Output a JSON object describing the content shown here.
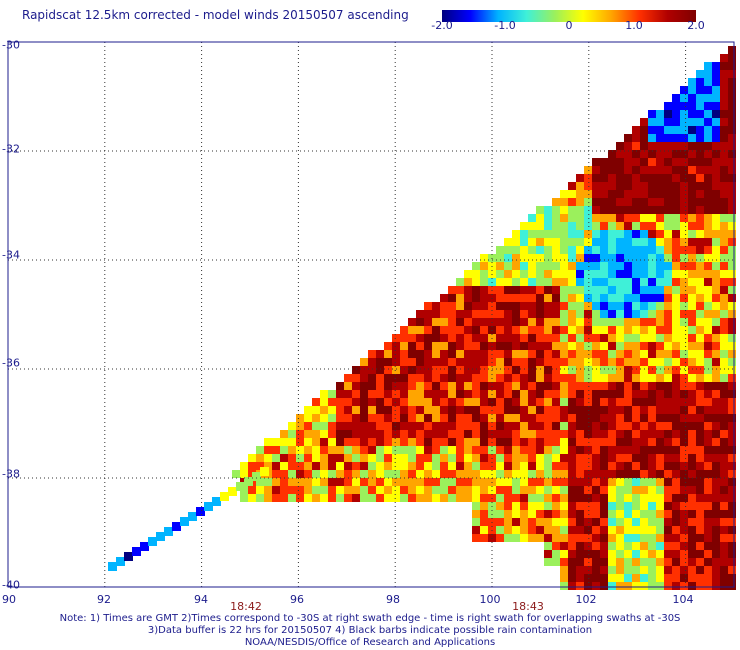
{
  "title": "Rapidscat 12.5km corrected - model winds 20150507 ascending",
  "colorbar": {
    "ticks": [
      "-2.0",
      "-1.0",
      "0",
      "1.0",
      "2.0"
    ],
    "range": [
      -2.0,
      2.0
    ],
    "colors": [
      "#00007f",
      "#0000ff",
      "#00b4ff",
      "#3ff0d8",
      "#9bf05c",
      "#ffff00",
      "#ffa500",
      "#ff3000",
      "#b00000",
      "#7f0000"
    ]
  },
  "map": {
    "lon_labels": [
      "90",
      "92",
      "94",
      "96",
      "98",
      "100",
      "102",
      "104"
    ],
    "lat_labels": [
      "-30",
      "-32",
      "-34",
      "-36",
      "-38",
      "-40"
    ],
    "lon_range": [
      90,
      105
    ],
    "lat_range": [
      -40,
      -30
    ],
    "gridlines": "dotted"
  },
  "swath_times": [
    {
      "label": "18:42",
      "lon": 95.0
    },
    {
      "label": "18:43",
      "lon": 100.8
    }
  ],
  "notes": [
    "Note: 1) Times are GMT 2)Times correspond to -30S at right swath edge - time is right swath for overlapping swaths at -30S",
    "3)Data buffer is 22 hrs for 20150507 4) Black barbs indicate possible rain contamination",
    "NOAA/NESDIS/Office of Research and Applications"
  ]
}
